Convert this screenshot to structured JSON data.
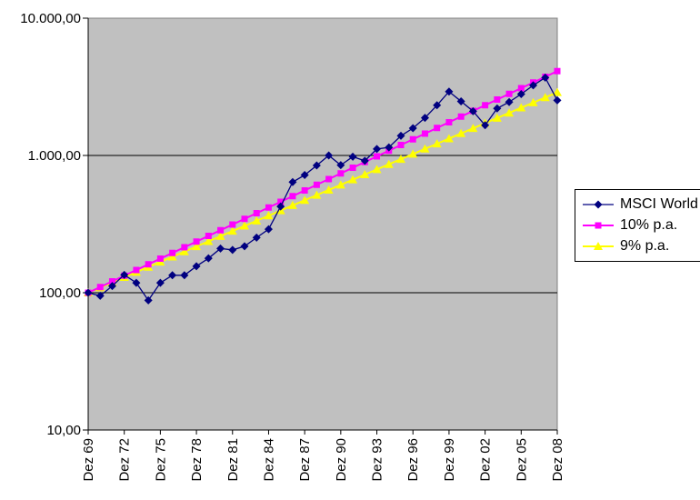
{
  "chart_data": {
    "type": "line",
    "title": "",
    "x_axis": {
      "point_count": 40,
      "first_point": "Dez 69",
      "last_point": "Dez 08",
      "tick_every": 3,
      "tick_labels": [
        "Dez 69",
        "Dez 72",
        "Dez 75",
        "Dez 78",
        "Dez 81",
        "Dez 84",
        "Dez 87",
        "Dez 90",
        "Dez 93",
        "Dez 96",
        "Dez 99",
        "Dez 02",
        "Dez 05",
        "Dez 08"
      ]
    },
    "y_axis": {
      "scale": "log",
      "range": [
        10,
        10000
      ],
      "tick_values": [
        10,
        100,
        1000,
        10000
      ],
      "tick_labels": [
        "10,00",
        "100,00",
        "1.000,00",
        "10.000,00"
      ]
    },
    "legend_position": "right",
    "plot_background": "#c0c0c0",
    "grid_color": "#000000",
    "series": [
      {
        "name": "MSCI World",
        "color": "#000080",
        "marker": "diamond",
        "values": [
          100,
          95,
          112,
          135,
          118,
          88,
          118,
          134,
          134,
          156,
          178,
          210,
          205,
          218,
          252,
          290,
          425,
          640,
          720,
          845,
          1000,
          850,
          980,
          915,
          1115,
          1145,
          1390,
          1580,
          1880,
          2320,
          2920,
          2480,
          2100,
          1660,
          2200,
          2450,
          2800,
          3240,
          3690,
          2520
        ]
      },
      {
        "name": "10% p.a.",
        "color": "#ff00ff",
        "marker": "square",
        "values": [
          100,
          110,
          121,
          133.1,
          146.4,
          161.1,
          177.2,
          194.9,
          214.4,
          235.8,
          259.4,
          285.3,
          313.8,
          345.2,
          379.7,
          417.7,
          459.5,
          505.4,
          556,
          611.6,
          672.7,
          740,
          814,
          895.4,
          984.9,
          1083.4,
          1191.8,
          1311,
          1442.1,
          1586.3,
          1744.9,
          1919.4,
          2111.4,
          2322.5,
          2554.8,
          2810.2,
          3091.3,
          3400.4,
          3740.4,
          4114.5
        ]
      },
      {
        "name": "9% p.a.",
        "color": "#ffff00",
        "marker": "triangle",
        "values": [
          100,
          109,
          118.8,
          129.5,
          141.2,
          153.9,
          167.7,
          182.8,
          199.3,
          217.2,
          236.7,
          258,
          281.3,
          306.6,
          334.2,
          364.2,
          397,
          432.8,
          471.7,
          514.2,
          560.4,
          610.9,
          665.9,
          725.8,
          791.1,
          862.3,
          939.9,
          1024.5,
          1116.7,
          1217.2,
          1326.8,
          1446.2,
          1576.3,
          1718.2,
          1872.8,
          2041.4,
          2225.1,
          2425.3,
          2643.6,
          2881.5
        ]
      }
    ]
  }
}
